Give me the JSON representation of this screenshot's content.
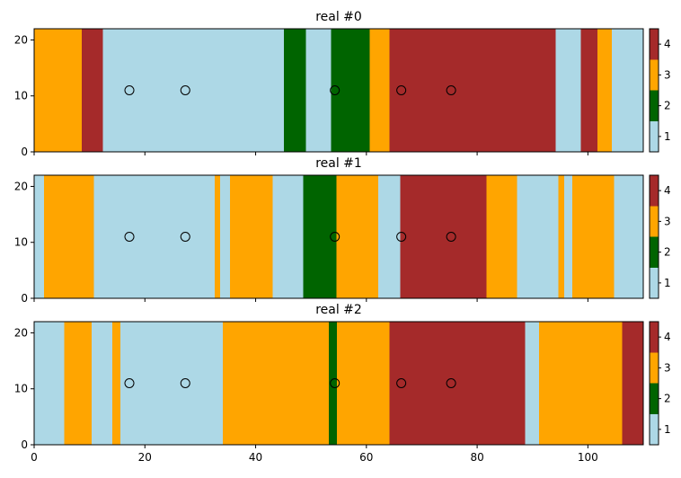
{
  "chart_data": {
    "type": "heatmap",
    "colors": {
      "1": "#add8e6",
      "2": "#006400",
      "3": "#ffa500",
      "4": "#a52a2a"
    },
    "xlim": [
      0,
      110
    ],
    "ylim": [
      0,
      22
    ],
    "xticks": [
      0,
      20,
      40,
      60,
      80,
      100
    ],
    "yticks": [
      0,
      10,
      20
    ],
    "colorbar_ticks": [
      1,
      2,
      3,
      4
    ],
    "points": [
      {
        "x": 17.2,
        "y": 11
      },
      {
        "x": 27.3,
        "y": 11
      },
      {
        "x": 54.3,
        "y": 11
      },
      {
        "x": 66.3,
        "y": 11
      },
      {
        "x": 75.3,
        "y": 11
      }
    ],
    "panels": [
      {
        "title": "real #0",
        "segments": [
          {
            "x0": 0,
            "x1": 8.6,
            "v": 3
          },
          {
            "x0": 8.6,
            "x1": 12.4,
            "v": 4
          },
          {
            "x0": 12.4,
            "x1": 45.1,
            "v": 1
          },
          {
            "x0": 45.1,
            "x1": 49.1,
            "v": 2
          },
          {
            "x0": 49.1,
            "x1": 53.6,
            "v": 1
          },
          {
            "x0": 53.6,
            "x1": 60.6,
            "v": 2
          },
          {
            "x0": 60.6,
            "x1": 64.2,
            "v": 3
          },
          {
            "x0": 64.2,
            "x1": 94.2,
            "v": 4
          },
          {
            "x0": 94.2,
            "x1": 98.7,
            "v": 1
          },
          {
            "x0": 98.7,
            "x1": 101.7,
            "v": 4
          },
          {
            "x0": 101.7,
            "x1": 104.3,
            "v": 3
          },
          {
            "x0": 104.3,
            "x1": 110,
            "v": 1
          }
        ]
      },
      {
        "title": "real #1",
        "segments": [
          {
            "x0": 0,
            "x1": 1.8,
            "v": 1
          },
          {
            "x0": 1.8,
            "x1": 10.8,
            "v": 3
          },
          {
            "x0": 10.8,
            "x1": 32.6,
            "v": 1
          },
          {
            "x0": 32.6,
            "x1": 33.6,
            "v": 3
          },
          {
            "x0": 33.6,
            "x1": 35.4,
            "v": 1
          },
          {
            "x0": 35.4,
            "x1": 43.1,
            "v": 3
          },
          {
            "x0": 43.1,
            "x1": 48.6,
            "v": 1
          },
          {
            "x0": 48.6,
            "x1": 54.6,
            "v": 2
          },
          {
            "x0": 54.6,
            "x1": 62.1,
            "v": 3
          },
          {
            "x0": 62.1,
            "x1": 66.1,
            "v": 1
          },
          {
            "x0": 66.1,
            "x1": 81.7,
            "v": 4
          },
          {
            "x0": 81.7,
            "x1": 87.2,
            "v": 3
          },
          {
            "x0": 87.2,
            "x1": 94.7,
            "v": 1
          },
          {
            "x0": 94.7,
            "x1": 95.7,
            "v": 3
          },
          {
            "x0": 95.7,
            "x1": 97.2,
            "v": 1
          },
          {
            "x0": 97.2,
            "x1": 104.7,
            "v": 3
          },
          {
            "x0": 104.7,
            "x1": 110,
            "v": 1
          }
        ]
      },
      {
        "title": "real #2",
        "segments": [
          {
            "x0": 0,
            "x1": 5.4,
            "v": 1
          },
          {
            "x0": 5.4,
            "x1": 10.4,
            "v": 3
          },
          {
            "x0": 10.4,
            "x1": 14.1,
            "v": 1
          },
          {
            "x0": 14.1,
            "x1": 15.6,
            "v": 3
          },
          {
            "x0": 15.6,
            "x1": 34.1,
            "v": 1
          },
          {
            "x0": 34.1,
            "x1": 53.2,
            "v": 3
          },
          {
            "x0": 53.2,
            "x1": 54.7,
            "v": 2
          },
          {
            "x0": 54.7,
            "x1": 64.2,
            "v": 3
          },
          {
            "x0": 64.2,
            "x1": 88.7,
            "v": 4
          },
          {
            "x0": 88.7,
            "x1": 91.2,
            "v": 1
          },
          {
            "x0": 91.2,
            "x1": 106.2,
            "v": 3
          },
          {
            "x0": 106.2,
            "x1": 110,
            "v": 4
          }
        ]
      }
    ]
  }
}
